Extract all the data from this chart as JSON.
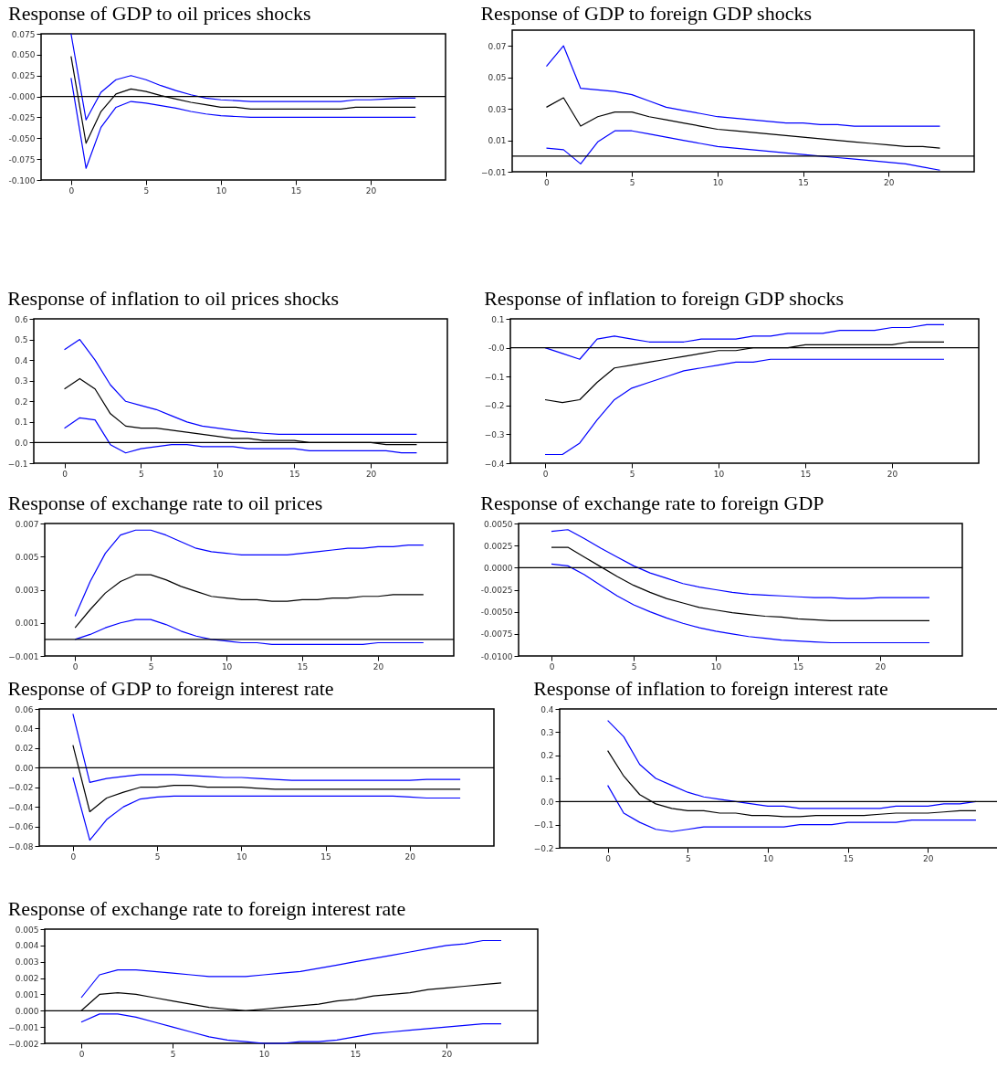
{
  "chart_data": [
    {
      "type": "line",
      "title": "Response of GDP to oil prices shocks",
      "x": [
        0,
        1,
        2,
        3,
        4,
        5,
        6,
        7,
        8,
        9,
        10,
        11,
        12,
        13,
        14,
        15,
        16,
        17,
        18,
        19,
        20,
        21,
        22,
        23
      ],
      "xlim": [
        -2,
        25
      ],
      "xticks": [
        0,
        5,
        10,
        15,
        20
      ],
      "ylim": [
        -0.1,
        0.075
      ],
      "yticks": [
        {
          "value": -0.1,
          "label": "-0.100"
        },
        {
          "value": -0.075,
          "label": "-0.075"
        },
        {
          "value": -0.05,
          "label": "-0.050"
        },
        {
          "value": -0.025,
          "label": "-0.025"
        },
        {
          "value": 0,
          "label": "-0.000"
        },
        {
          "value": 0.025,
          "label": "0.025"
        },
        {
          "value": 0.05,
          "label": "0.050"
        },
        {
          "value": 0.075,
          "label": "0.075"
        }
      ],
      "ref_lines": [
        {
          "axis": "y",
          "value": 0,
          "color": "#000000"
        }
      ],
      "series": [
        {
          "color": "#0000ff",
          "values": [
            0.075,
            -0.028,
            0.005,
            0.02,
            0.025,
            0.02,
            0.013,
            0.007,
            0.002,
            -0.002,
            -0.004,
            -0.005,
            -0.006,
            -0.006,
            -0.006,
            -0.006,
            -0.006,
            -0.006,
            -0.006,
            -0.004,
            -0.004,
            -0.003,
            -0.002,
            -0.002
          ]
        },
        {
          "color": "#000000",
          "values": [
            0.048,
            -0.056,
            -0.018,
            0.003,
            0.009,
            0.006,
            0.001,
            -0.003,
            -0.007,
            -0.01,
            -0.013,
            -0.013,
            -0.015,
            -0.015,
            -0.015,
            -0.015,
            -0.015,
            -0.015,
            -0.015,
            -0.013,
            -0.013,
            -0.013,
            -0.013,
            -0.013
          ]
        },
        {
          "color": "#0000ff",
          "values": [
            0.022,
            -0.086,
            -0.037,
            -0.013,
            -0.006,
            -0.008,
            -0.011,
            -0.014,
            -0.018,
            -0.021,
            -0.023,
            -0.024,
            -0.025,
            -0.025,
            -0.025,
            -0.025,
            -0.025,
            -0.025,
            -0.025,
            -0.025,
            -0.025,
            -0.025,
            -0.025,
            -0.025
          ]
        }
      ]
    },
    {
      "type": "line",
      "title": "Response of GDP to foreign GDP shocks",
      "x": [
        0,
        1,
        2,
        3,
        4,
        5,
        6,
        7,
        8,
        9,
        10,
        11,
        12,
        13,
        14,
        15,
        16,
        17,
        18,
        19,
        20,
        21,
        22,
        23
      ],
      "xlim": [
        -2,
        25
      ],
      "xticks": [
        0,
        5,
        10,
        15,
        20
      ],
      "ylim": [
        -0.01,
        0.08
      ],
      "yticks": [
        -0.01,
        0.01,
        0.03,
        0.05,
        0.07
      ],
      "ref_lines": [
        {
          "axis": "y",
          "value": 0,
          "color": "#000000"
        }
      ],
      "series": [
        {
          "color": "#0000ff",
          "values": [
            0.057,
            0.07,
            0.043,
            0.042,
            0.041,
            0.039,
            0.035,
            0.031,
            0.029,
            0.027,
            0.025,
            0.024,
            0.023,
            0.022,
            0.021,
            0.021,
            0.02,
            0.02,
            0.019,
            0.019,
            0.019,
            0.019,
            0.019,
            0.019
          ]
        },
        {
          "color": "#000000",
          "values": [
            0.031,
            0.037,
            0.019,
            0.025,
            0.028,
            0.028,
            0.025,
            0.023,
            0.021,
            0.019,
            0.017,
            0.016,
            0.015,
            0.014,
            0.013,
            0.012,
            0.011,
            0.01,
            0.009,
            0.008,
            0.007,
            0.006,
            0.006,
            0.005
          ]
        },
        {
          "color": "#0000ff",
          "values": [
            0.005,
            0.004,
            -0.005,
            0.009,
            0.016,
            0.016,
            0.014,
            0.012,
            0.01,
            0.008,
            0.006,
            0.005,
            0.004,
            0.003,
            0.002,
            0.001,
            0,
            -0.001,
            -0.002,
            -0.003,
            -0.004,
            -0.005,
            -0.007,
            -0.009
          ]
        }
      ]
    },
    {
      "type": "line",
      "title": "Response of inflation to oil prices shocks",
      "x": [
        0,
        1,
        2,
        3,
        4,
        5,
        6,
        7,
        8,
        9,
        10,
        11,
        12,
        13,
        14,
        15,
        16,
        17,
        18,
        19,
        20,
        21,
        22,
        23
      ],
      "xlim": [
        -2,
        25
      ],
      "xticks": [
        0,
        5,
        10,
        15,
        20
      ],
      "ylim": [
        -0.1,
        0.6
      ],
      "yticks": [
        -0.1,
        {
          "value": 0,
          "label": "0.0"
        },
        0.1,
        0.2,
        0.3,
        0.4,
        0.5,
        0.6
      ],
      "ref_lines": [
        {
          "axis": "y",
          "value": 0,
          "color": "#000000"
        }
      ],
      "series": [
        {
          "color": "#0000ff",
          "values": [
            0.45,
            0.5,
            0.4,
            0.28,
            0.2,
            0.18,
            0.16,
            0.13,
            0.1,
            0.08,
            0.07,
            0.06,
            0.05,
            0.045,
            0.04,
            0.04,
            0.04,
            0.04,
            0.04,
            0.04,
            0.04,
            0.04,
            0.04,
            0.04
          ]
        },
        {
          "color": "#000000",
          "values": [
            0.26,
            0.31,
            0.26,
            0.14,
            0.08,
            0.07,
            0.07,
            0.06,
            0.05,
            0.04,
            0.03,
            0.02,
            0.02,
            0.01,
            0.01,
            0.01,
            0,
            0,
            0,
            0,
            0,
            -0.01,
            -0.01,
            -0.01
          ]
        },
        {
          "color": "#0000ff",
          "values": [
            0.07,
            0.12,
            0.11,
            -0.01,
            -0.05,
            -0.03,
            -0.02,
            -0.01,
            -0.01,
            -0.02,
            -0.02,
            -0.02,
            -0.03,
            -0.03,
            -0.03,
            -0.03,
            -0.04,
            -0.04,
            -0.04,
            -0.04,
            -0.04,
            -0.04,
            -0.05,
            -0.05
          ]
        }
      ]
    },
    {
      "type": "line",
      "title": "Response of inflation to foreign GDP shocks",
      "x": [
        0,
        1,
        2,
        3,
        4,
        5,
        6,
        7,
        8,
        9,
        10,
        11,
        12,
        13,
        14,
        15,
        16,
        17,
        18,
        19,
        20,
        21,
        22,
        23
      ],
      "xlim": [
        -2,
        25
      ],
      "xticks": [
        0,
        5,
        10,
        15,
        20
      ],
      "ylim": [
        -0.4,
        0.1
      ],
      "yticks": [
        -0.4,
        -0.3,
        -0.2,
        -0.1,
        {
          "value": 0,
          "label": "-0.0"
        },
        0.1
      ],
      "ref_lines": [
        {
          "axis": "y",
          "value": 0,
          "color": "#000000"
        }
      ],
      "series": [
        {
          "color": "#0000ff",
          "values": [
            0,
            -0.02,
            -0.04,
            0.03,
            0.04,
            0.03,
            0.02,
            0.02,
            0.02,
            0.03,
            0.03,
            0.03,
            0.04,
            0.04,
            0.05,
            0.05,
            0.05,
            0.06,
            0.06,
            0.06,
            0.07,
            0.07,
            0.08,
            0.08
          ]
        },
        {
          "color": "#000000",
          "values": [
            -0.18,
            -0.19,
            -0.18,
            -0.12,
            -0.07,
            -0.06,
            -0.05,
            -0.04,
            -0.03,
            -0.02,
            -0.01,
            -0.01,
            0,
            0,
            0,
            0.01,
            0.01,
            0.01,
            0.01,
            0.01,
            0.01,
            0.02,
            0.02,
            0.02
          ]
        },
        {
          "color": "#0000ff",
          "values": [
            -0.37,
            -0.37,
            -0.33,
            -0.25,
            -0.18,
            -0.14,
            -0.12,
            -0.1,
            -0.08,
            -0.07,
            -0.06,
            -0.05,
            -0.05,
            -0.04,
            -0.04,
            -0.04,
            -0.04,
            -0.04,
            -0.04,
            -0.04,
            -0.04,
            -0.04,
            -0.04,
            -0.04
          ]
        }
      ]
    },
    {
      "type": "line",
      "title": "Response of exchange rate to oil prices",
      "x": [
        0,
        1,
        2,
        3,
        4,
        5,
        6,
        7,
        8,
        9,
        10,
        11,
        12,
        13,
        14,
        15,
        16,
        17,
        18,
        19,
        20,
        21,
        22,
        23
      ],
      "xlim": [
        -2,
        25
      ],
      "xticks": [
        0,
        5,
        10,
        15,
        20
      ],
      "ylim": [
        -0.001,
        0.007
      ],
      "yticks": [
        -0.001,
        0.001,
        0.003,
        0.005,
        0.007
      ],
      "ref_lines": [
        {
          "axis": "y",
          "value": 0,
          "color": "#000000"
        }
      ],
      "series": [
        {
          "color": "#0000ff",
          "values": [
            0.0014,
            0.0035,
            0.0052,
            0.0063,
            0.0066,
            0.0066,
            0.0063,
            0.0059,
            0.0055,
            0.0053,
            0.0052,
            0.0051,
            0.0051,
            0.0051,
            0.0051,
            0.0052,
            0.0053,
            0.0054,
            0.0055,
            0.0055,
            0.0056,
            0.0056,
            0.0057,
            0.0057
          ]
        },
        {
          "color": "#000000",
          "values": [
            0.0007,
            0.0018,
            0.0028,
            0.0035,
            0.0039,
            0.0039,
            0.0036,
            0.0032,
            0.0029,
            0.0026,
            0.0025,
            0.0024,
            0.0024,
            0.0023,
            0.0023,
            0.0024,
            0.0024,
            0.0025,
            0.0025,
            0.0026,
            0.0026,
            0.0027,
            0.0027,
            0.0027
          ]
        },
        {
          "color": "#0000ff",
          "values": [
            0,
            0.0003,
            0.0007,
            0.001,
            0.0012,
            0.0012,
            0.0009,
            0.0005,
            0.0002,
            0,
            -0.0001,
            -0.0002,
            -0.0002,
            -0.0003,
            -0.0003,
            -0.0003,
            -0.0003,
            -0.0003,
            -0.0003,
            -0.0003,
            -0.0002,
            -0.0002,
            -0.0002,
            -0.0002
          ]
        }
      ]
    },
    {
      "type": "line",
      "title": "Response of exchange rate to foreign GDP",
      "x": [
        0,
        1,
        2,
        3,
        4,
        5,
        6,
        7,
        8,
        9,
        10,
        11,
        12,
        13,
        14,
        15,
        16,
        17,
        18,
        19,
        20,
        21,
        22,
        23
      ],
      "xlim": [
        -2,
        25
      ],
      "xticks": [
        0,
        5,
        10,
        15,
        20
      ],
      "ylim": [
        -0.01,
        0.005
      ],
      "yticks": [
        {
          "value": -0.01,
          "label": "-0.0100"
        },
        {
          "value": -0.0075,
          "label": "-0.0075"
        },
        {
          "value": -0.005,
          "label": "-0.0050"
        },
        {
          "value": -0.0025,
          "label": "-0.0025"
        },
        {
          "value": 0,
          "label": "0.0000"
        },
        {
          "value": 0.0025,
          "label": "0.0025"
        },
        {
          "value": 0.005,
          "label": "0.0050"
        }
      ],
      "ref_lines": [
        {
          "axis": "y",
          "value": 0,
          "color": "#000000"
        }
      ],
      "series": [
        {
          "color": "#0000ff",
          "values": [
            0.0041,
            0.0043,
            0.0033,
            0.0022,
            0.0012,
            0.0002,
            -0.0006,
            -0.0012,
            -0.0018,
            -0.0022,
            -0.0025,
            -0.0028,
            -0.003,
            -0.0031,
            -0.0032,
            -0.0033,
            -0.0034,
            -0.0034,
            -0.0035,
            -0.0035,
            -0.0034,
            -0.0034,
            -0.0034,
            -0.0034
          ]
        },
        {
          "color": "#000000",
          "values": [
            0.0023,
            0.0023,
            0.0012,
            0.0001,
            -0.001,
            -0.002,
            -0.0028,
            -0.0035,
            -0.004,
            -0.0045,
            -0.0048,
            -0.0051,
            -0.0053,
            -0.0055,
            -0.0056,
            -0.0058,
            -0.0059,
            -0.006,
            -0.006,
            -0.006,
            -0.006,
            -0.006,
            -0.006,
            -0.006
          ]
        },
        {
          "color": "#0000ff",
          "values": [
            0.0004,
            0.0002,
            -0.0008,
            -0.002,
            -0.0032,
            -0.0042,
            -0.005,
            -0.0057,
            -0.0063,
            -0.0068,
            -0.0072,
            -0.0075,
            -0.0078,
            -0.008,
            -0.0082,
            -0.0083,
            -0.0084,
            -0.0085,
            -0.0085,
            -0.0085,
            -0.0085,
            -0.0085,
            -0.0085,
            -0.0085
          ]
        }
      ]
    },
    {
      "type": "line",
      "title": "Response of GDP to foreign interest rate",
      "x": [
        0,
        1,
        2,
        3,
        4,
        5,
        6,
        7,
        8,
        9,
        10,
        11,
        12,
        13,
        14,
        15,
        16,
        17,
        18,
        19,
        20,
        21,
        22,
        23
      ],
      "xlim": [
        -2,
        25
      ],
      "xticks": [
        0,
        5,
        10,
        15,
        20
      ],
      "ylim": [
        -0.08,
        0.06
      ],
      "yticks": [
        -0.08,
        -0.06,
        -0.04,
        -0.02,
        {
          "value": 0,
          "label": "0.00"
        },
        0.02,
        0.04,
        0.06
      ],
      "ref_lines": [
        {
          "axis": "y",
          "value": 0,
          "color": "#000000"
        }
      ],
      "series": [
        {
          "color": "#0000ff",
          "values": [
            0.055,
            -0.015,
            -0.011,
            -0.009,
            -0.007,
            -0.007,
            -0.007,
            -0.008,
            -0.009,
            -0.01,
            -0.01,
            -0.011,
            -0.012,
            -0.013,
            -0.013,
            -0.013,
            -0.013,
            -0.013,
            -0.013,
            -0.013,
            -0.013,
            -0.012,
            -0.012,
            -0.012
          ]
        },
        {
          "color": "#000000",
          "values": [
            0.023,
            -0.045,
            -0.031,
            -0.025,
            -0.02,
            -0.02,
            -0.018,
            -0.018,
            -0.02,
            -0.02,
            -0.02,
            -0.021,
            -0.022,
            -0.022,
            -0.022,
            -0.022,
            -0.022,
            -0.022,
            -0.022,
            -0.022,
            -0.022,
            -0.022,
            -0.022,
            -0.022
          ]
        },
        {
          "color": "#0000ff",
          "values": [
            -0.01,
            -0.074,
            -0.053,
            -0.04,
            -0.032,
            -0.03,
            -0.029,
            -0.029,
            -0.029,
            -0.029,
            -0.029,
            -0.029,
            -0.029,
            -0.029,
            -0.029,
            -0.029,
            -0.029,
            -0.029,
            -0.029,
            -0.029,
            -0.03,
            -0.031,
            -0.031,
            -0.031
          ]
        }
      ]
    },
    {
      "type": "line",
      "title": "Response of inflation to foreign interest rate",
      "x": [
        0,
        1,
        2,
        3,
        4,
        5,
        6,
        7,
        8,
        9,
        10,
        11,
        12,
        13,
        14,
        15,
        16,
        17,
        18,
        19,
        20,
        21,
        22,
        23
      ],
      "xlim": [
        -3,
        25
      ],
      "xticks": [
        0,
        5,
        10,
        15,
        20
      ],
      "ylim": [
        -0.2,
        0.4
      ],
      "yticks": [
        -0.2,
        -0.1,
        {
          "value": 0,
          "label": "0.0"
        },
        0.1,
        0.2,
        0.3,
        0.4
      ],
      "ref_lines": [
        {
          "axis": "y",
          "value": 0,
          "color": "#000000"
        }
      ],
      "series": [
        {
          "color": "#0000ff",
          "values": [
            0.35,
            0.28,
            0.16,
            0.1,
            0.07,
            0.04,
            0.02,
            0.01,
            0,
            -0.01,
            -0.02,
            -0.02,
            -0.03,
            -0.03,
            -0.03,
            -0.03,
            -0.03,
            -0.03,
            -0.02,
            -0.02,
            -0.02,
            -0.01,
            -0.01,
            0
          ]
        },
        {
          "color": "#000000",
          "values": [
            0.22,
            0.11,
            0.03,
            -0.01,
            -0.03,
            -0.04,
            -0.04,
            -0.05,
            -0.05,
            -0.06,
            -0.06,
            -0.065,
            -0.065,
            -0.06,
            -0.06,
            -0.06,
            -0.06,
            -0.055,
            -0.05,
            -0.05,
            -0.05,
            -0.045,
            -0.04,
            -0.04
          ]
        },
        {
          "color": "#0000ff",
          "values": [
            0.07,
            -0.05,
            -0.09,
            -0.12,
            -0.13,
            -0.12,
            -0.11,
            -0.11,
            -0.11,
            -0.11,
            -0.11,
            -0.11,
            -0.1,
            -0.1,
            -0.1,
            -0.09,
            -0.09,
            -0.09,
            -0.09,
            -0.08,
            -0.08,
            -0.08,
            -0.08,
            -0.08
          ]
        }
      ]
    },
    {
      "type": "line",
      "title": "Response of exchange rate to foreign interest rate",
      "x": [
        0,
        1,
        2,
        3,
        4,
        5,
        6,
        7,
        8,
        9,
        10,
        11,
        12,
        13,
        14,
        15,
        16,
        17,
        18,
        19,
        20,
        21,
        22,
        23
      ],
      "xlim": [
        -2,
        25
      ],
      "xticks": [
        0,
        5,
        10,
        15,
        20
      ],
      "ylim": [
        -0.002,
        0.005
      ],
      "yticks": [
        -0.002,
        -0.001,
        {
          "value": 0,
          "label": "0.000"
        },
        0.001,
        0.002,
        0.003,
        0.004,
        0.005
      ],
      "ref_lines": [
        {
          "axis": "y",
          "value": 0,
          "color": "#000000"
        }
      ],
      "series": [
        {
          "color": "#0000ff",
          "values": [
            0.0008,
            0.0022,
            0.0025,
            0.0025,
            0.0024,
            0.0023,
            0.0022,
            0.0021,
            0.0021,
            0.0021,
            0.0022,
            0.0023,
            0.0024,
            0.0026,
            0.0028,
            0.003,
            0.0032,
            0.0034,
            0.0036,
            0.0038,
            0.004,
            0.0041,
            0.0043,
            0.0043
          ]
        },
        {
          "color": "#000000",
          "values": [
            0,
            0.001,
            0.0011,
            0.001,
            0.0008,
            0.0006,
            0.0004,
            0.0002,
            0.0001,
            0,
            0.0001,
            0.0002,
            0.0003,
            0.0004,
            0.0006,
            0.0007,
            0.0009,
            0.001,
            0.0011,
            0.0013,
            0.0014,
            0.0015,
            0.0016,
            0.0017
          ]
        },
        {
          "color": "#0000ff",
          "values": [
            -0.0007,
            -0.0002,
            -0.0002,
            -0.0004,
            -0.0007,
            -0.001,
            -0.0013,
            -0.0016,
            -0.0018,
            -0.0019,
            -0.002,
            -0.002,
            -0.0019,
            -0.0019,
            -0.0018,
            -0.0016,
            -0.0014,
            -0.0013,
            -0.0012,
            -0.0011,
            -0.001,
            -0.0009,
            -0.0008,
            -0.0008
          ]
        }
      ]
    }
  ]
}
